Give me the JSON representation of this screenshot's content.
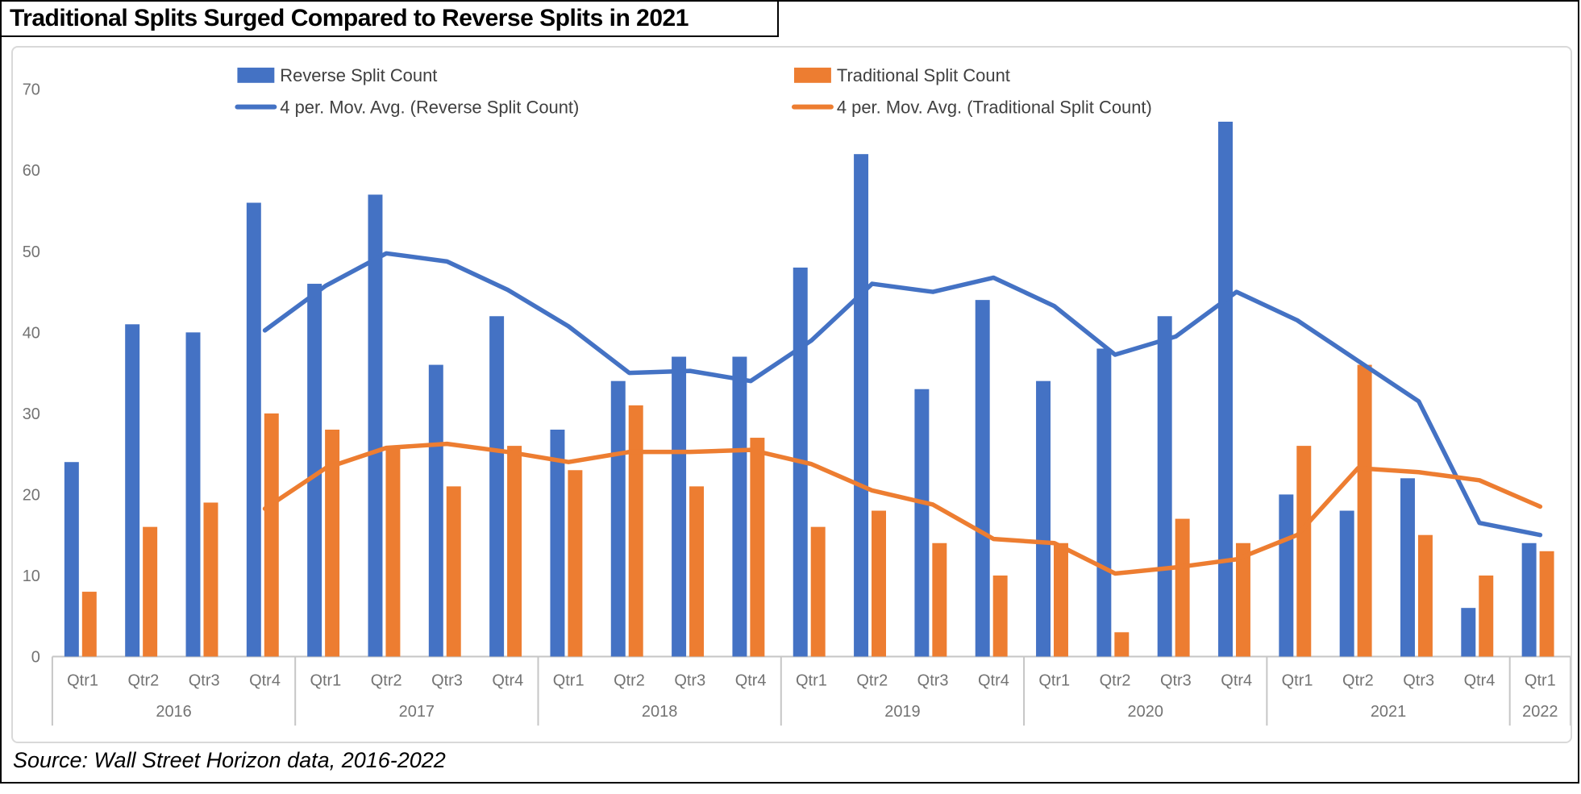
{
  "title": "Traditional Splits Surged Compared to Reverse Splits in 2021",
  "source": "Source: Wall Street Horizon data, 2016-2022",
  "legend": [
    {
      "label": "Reverse Split Count",
      "swatch": "bar",
      "color": "#4472C4",
      "col": 0,
      "row": 0
    },
    {
      "label": "4 per. Mov. Avg. (Reverse Split Count)",
      "swatch": "line",
      "color": "#4472C4",
      "col": 0,
      "row": 1
    },
    {
      "label": "Traditional Split Count",
      "swatch": "bar",
      "color": "#ED7D31",
      "col": 1,
      "row": 0
    },
    {
      "label": "4 per. Mov. Avg. (Traditional Split Count)",
      "swatch": "line",
      "color": "#ED7D31",
      "col": 1,
      "row": 1
    }
  ],
  "chart_data": {
    "type": "bar",
    "categories": [
      "Qtr1",
      "Qtr2",
      "Qtr3",
      "Qtr4",
      "Qtr1",
      "Qtr2",
      "Qtr3",
      "Qtr4",
      "Qtr1",
      "Qtr2",
      "Qtr3",
      "Qtr4",
      "Qtr1",
      "Qtr2",
      "Qtr3",
      "Qtr4",
      "Qtr1",
      "Qtr2",
      "Qtr3",
      "Qtr4",
      "Qtr1",
      "Qtr2",
      "Qtr3",
      "Qtr4",
      "Qtr1"
    ],
    "year_groups": [
      {
        "label": "2016",
        "quarters": 4
      },
      {
        "label": "2017",
        "quarters": 4
      },
      {
        "label": "2018",
        "quarters": 4
      },
      {
        "label": "2019",
        "quarters": 4
      },
      {
        "label": "2020",
        "quarters": 4
      },
      {
        "label": "2021",
        "quarters": 4
      },
      {
        "label": "2022",
        "quarters": 1
      }
    ],
    "series": [
      {
        "name": "Reverse Split Count",
        "type": "bar",
        "color": "#4472C4",
        "values": [
          24,
          41,
          40,
          56,
          46,
          57,
          36,
          42,
          28,
          34,
          37,
          37,
          48,
          62,
          33,
          44,
          34,
          38,
          42,
          66,
          20,
          18,
          22,
          6,
          14
        ]
      },
      {
        "name": "Traditional Split Count",
        "type": "bar",
        "color": "#ED7D31",
        "values": [
          8,
          16,
          19,
          30,
          28,
          26,
          21,
          26,
          23,
          31,
          21,
          27,
          16,
          18,
          14,
          10,
          14,
          3,
          17,
          14,
          26,
          36,
          15,
          10,
          13
        ]
      },
      {
        "name": "4 per. Mov. Avg. (Reverse Split Count)",
        "type": "line",
        "color": "#4472C4",
        "values": [
          null,
          null,
          null,
          40.25,
          45.75,
          49.75,
          48.75,
          45.25,
          40.75,
          35,
          35.25,
          34,
          39,
          46,
          45,
          46.75,
          43.25,
          37.25,
          39.5,
          45,
          41.5,
          36.5,
          31.5,
          16.5,
          15
        ]
      },
      {
        "name": "4 per. Mov. Avg. (Traditional Split Count)",
        "type": "line",
        "color": "#ED7D31",
        "values": [
          null,
          null,
          null,
          18.25,
          23.25,
          25.75,
          26.25,
          25.25,
          24,
          25.25,
          25.25,
          25.5,
          23.75,
          20.5,
          18.75,
          14.5,
          14,
          10.25,
          11,
          12,
          15,
          23.25,
          22.75,
          21.75,
          18.5
        ]
      }
    ],
    "yticks": [
      0,
      10,
      20,
      30,
      40,
      50,
      60,
      70
    ],
    "ylim": [
      0,
      70
    ],
    "grid": "off",
    "legend_position": "top-inside",
    "axis_label_color": "#737373",
    "axis_line_color": "#C6C6C6",
    "legend_text_color": "#404040"
  }
}
